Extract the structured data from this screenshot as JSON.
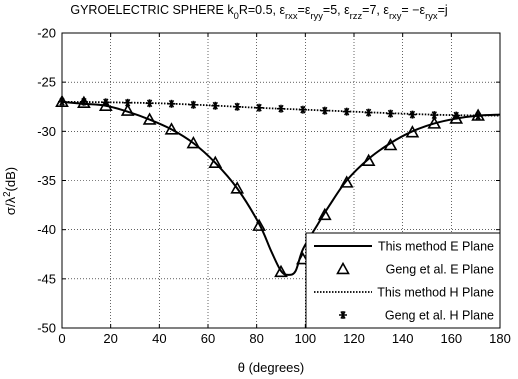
{
  "chart_data": {
    "type": "line",
    "title_parts": [
      {
        "t": "GYROELECTRIC SPHERE k",
        "s": "n"
      },
      {
        "t": "0",
        "s": "sub"
      },
      {
        "t": "R=0.5, ε",
        "s": "n"
      },
      {
        "t": "rxx",
        "s": "sub"
      },
      {
        "t": "=ε",
        "s": "n"
      },
      {
        "t": "ryy",
        "s": "sub"
      },
      {
        "t": "=5, ε",
        "s": "n"
      },
      {
        "t": "rzz",
        "s": "sub"
      },
      {
        "t": "=7, ε",
        "s": "n"
      },
      {
        "t": "rxy",
        "s": "sub"
      },
      {
        "t": "= −ε",
        "s": "n"
      },
      {
        "t": "ryx",
        "s": "sub"
      },
      {
        "t": "=j",
        "s": "n"
      }
    ],
    "xlabel": "θ (degrees)",
    "ylabel_parts": [
      {
        "t": "σ/λ",
        "s": "n"
      },
      {
        "t": "2",
        "s": "sup"
      },
      {
        "t": "(dB)",
        "s": "n"
      }
    ],
    "xlim": [
      0,
      180
    ],
    "ylim": [
      -50,
      -20
    ],
    "xticks": [
      0,
      20,
      40,
      60,
      80,
      100,
      120,
      140,
      160,
      180
    ],
    "yticks": [
      -50,
      -45,
      -40,
      -35,
      -30,
      -25,
      -20
    ],
    "grid": true,
    "legend_position": "bottom-right",
    "series": [
      {
        "name": "This method E Plane",
        "style": "solid",
        "x": [
          0,
          9,
          18,
          27,
          36,
          45,
          54,
          63,
          72,
          81,
          86,
          90,
          93,
          96,
          99,
          105,
          110,
          117,
          126,
          135,
          144,
          153,
          162,
          171,
          180
        ],
        "y": [
          -27.0,
          -27.2,
          -27.4,
          -28.0,
          -28.8,
          -29.8,
          -31.2,
          -33.2,
          -35.8,
          -39.4,
          -42.2,
          -44.2,
          -44.6,
          -44.2,
          -42.0,
          -39.5,
          -37.5,
          -35.0,
          -32.8,
          -31.2,
          -30.0,
          -29.2,
          -28.7,
          -28.4,
          -28.3
        ]
      },
      {
        "name": "Geng et al.  E Plane",
        "style": "triangle",
        "x": [
          0,
          9,
          18,
          27,
          36,
          45,
          54,
          63,
          72,
          81,
          90,
          99,
          108,
          117,
          126,
          135,
          144,
          153,
          162,
          171
        ],
        "y": [
          -27.0,
          -27.1,
          -27.4,
          -27.9,
          -28.8,
          -29.8,
          -31.2,
          -33.2,
          -35.8,
          -39.6,
          -44.3,
          -43.0,
          -38.5,
          -35.2,
          -33.0,
          -31.4,
          -30.1,
          -29.2,
          -28.7,
          -28.4
        ]
      },
      {
        "name": "This method H Plane",
        "style": "dotted",
        "x": [
          0,
          20,
          40,
          60,
          80,
          100,
          120,
          140,
          160,
          180
        ],
        "y": [
          -27.0,
          -27.05,
          -27.15,
          -27.35,
          -27.6,
          -27.8,
          -28.0,
          -28.2,
          -28.35,
          -28.4
        ]
      },
      {
        "name": "Geng et al.  H Plane",
        "style": "asterisk",
        "x": [
          0,
          9,
          18,
          27,
          36,
          45,
          54,
          63,
          72,
          81,
          90,
          99,
          108,
          117,
          126,
          135,
          144,
          153,
          162,
          171
        ],
        "y": [
          -27.0,
          -27.0,
          -27.05,
          -27.1,
          -27.15,
          -27.2,
          -27.3,
          -27.4,
          -27.5,
          -27.6,
          -27.7,
          -27.8,
          -27.9,
          -28.0,
          -28.1,
          -28.2,
          -28.3,
          -28.35,
          -28.4,
          -28.45
        ]
      }
    ]
  }
}
